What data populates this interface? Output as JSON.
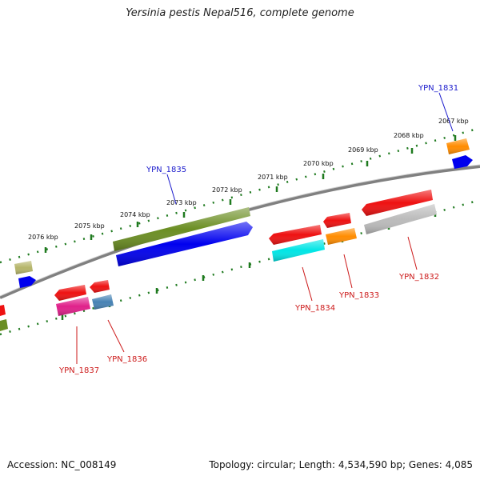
{
  "title": "Yersinia pestis Nepal516, complete genome",
  "footer": {
    "accession": "Accession: NC_008149",
    "summary": "Topology: circular; Length: 4,534,590 bp; Genes: 4,085"
  },
  "ticks": [
    "2076 kbp",
    "2075 kbp",
    "2074 kbp",
    "2073 kbp",
    "2072 kbp",
    "2071 kbp",
    "2070 kbp",
    "2069 kbp",
    "2068 kbp",
    "2067 kbp"
  ],
  "genes": {
    "YPN_1831": "YPN_1831",
    "YPN_1832": "YPN_1832",
    "YPN_1833": "YPN_1833",
    "YPN_1834": "YPN_1834",
    "YPN_1835": "YPN_1835",
    "YPN_1836": "YPN_1836",
    "YPN_1837": "YPN_1837"
  },
  "colors": {
    "backbone": "#808080",
    "tick_dots": "#1f7a1f",
    "label_blue": "#1a1acc",
    "label_red": "#cc1a1a",
    "olive": "#6b8e23",
    "blue": "#0000ee",
    "red": "#ee1111",
    "cyan": "#00e5e5",
    "orange": "#ff8c00",
    "silver": "#bbbbbb",
    "magenta": "#e0208a",
    "steel": "#4682b4",
    "khaki": "#b5b56a"
  }
}
